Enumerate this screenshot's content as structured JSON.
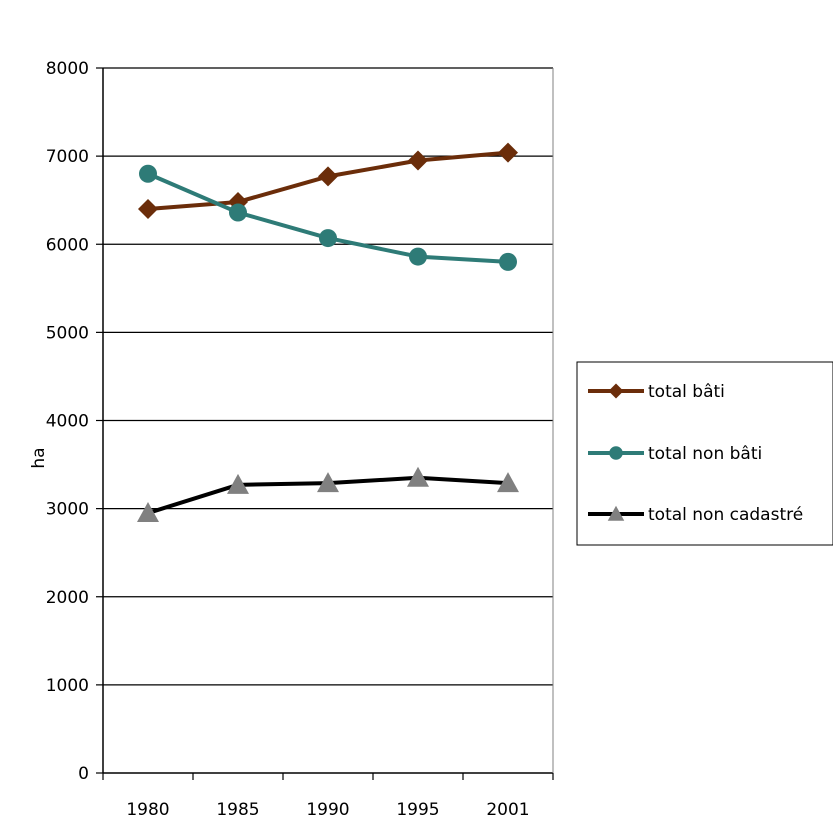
{
  "chart_data": {
    "type": "line",
    "categories": [
      "1980",
      "1985",
      "1990",
      "1995",
      "2001"
    ],
    "ylabel": "ha",
    "ylim": [
      0,
      8000
    ],
    "y_ticks": [
      "0",
      "1000",
      "2000",
      "3000",
      "4000",
      "5000",
      "6000",
      "7000",
      "8000"
    ],
    "grid": true,
    "legend_position": "right",
    "series": [
      {
        "name": "total bâti",
        "values": [
          6400,
          6480,
          6770,
          6950,
          7040
        ],
        "color": "#6b2d0a",
        "marker": "diamond",
        "marker_color": "#6b2d0a"
      },
      {
        "name": "total non bâti",
        "values": [
          6800,
          6360,
          6070,
          5860,
          5800
        ],
        "color": "#2e7b77",
        "marker": "circle",
        "marker_color": "#2e7b77"
      },
      {
        "name": "total non cadastré",
        "values": [
          2950,
          3270,
          3290,
          3350,
          3290
        ],
        "color": "#000000",
        "marker": "triangle",
        "marker_color": "#808080"
      }
    ]
  }
}
